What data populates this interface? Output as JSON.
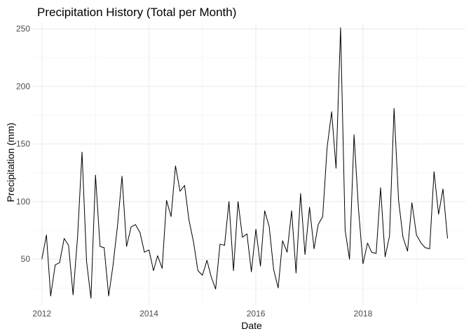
{
  "chart_data": {
    "type": "line",
    "title": "Precipitation History (Total per Month)",
    "xlabel": "Date",
    "ylabel": "Precipitation (mm)",
    "x_scale": "date",
    "xlim": [
      "2011-11-01",
      "2019-12-01"
    ],
    "ylim": [
      10,
      255
    ],
    "x_ticks": [
      {
        "value": "2012-01-01",
        "label": "2012"
      },
      {
        "value": "2014-01-01",
        "label": "2014"
      },
      {
        "value": "2016-01-01",
        "label": "2016"
      },
      {
        "value": "2018-01-01",
        "label": "2018"
      }
    ],
    "y_ticks": [
      50,
      100,
      150,
      200,
      250
    ],
    "grid": true,
    "legend": "none",
    "line_color": "#000000",
    "series": [
      {
        "x": [
          "2012-01-01",
          "2012-02-01",
          "2012-03-01",
          "2012-04-01",
          "2012-05-01",
          "2012-06-01",
          "2012-07-01",
          "2012-08-01",
          "2012-09-01",
          "2012-10-01",
          "2012-11-01",
          "2012-12-01",
          "2013-01-01",
          "2013-02-01",
          "2013-03-01",
          "2013-04-01",
          "2013-05-01",
          "2013-06-01",
          "2013-07-01",
          "2013-08-01",
          "2013-09-01",
          "2013-10-01",
          "2013-11-01",
          "2013-12-01",
          "2014-01-01",
          "2014-02-01",
          "2014-03-01",
          "2014-04-01",
          "2014-05-01",
          "2014-06-01",
          "2014-07-01",
          "2014-08-01",
          "2014-09-01",
          "2014-10-01",
          "2014-11-01",
          "2014-12-01",
          "2015-01-01",
          "2015-02-01",
          "2015-03-01",
          "2015-04-01",
          "2015-05-01",
          "2015-06-01",
          "2015-07-01",
          "2015-08-01",
          "2015-09-01",
          "2015-10-01",
          "2015-11-01",
          "2015-12-01",
          "2016-01-01",
          "2016-02-01",
          "2016-03-01",
          "2016-04-01",
          "2016-05-01",
          "2016-06-01",
          "2016-07-01",
          "2016-08-01",
          "2016-09-01",
          "2016-10-01",
          "2016-11-01",
          "2016-12-01",
          "2017-01-01",
          "2017-02-01",
          "2017-03-01",
          "2017-04-01",
          "2017-05-01",
          "2017-06-01",
          "2017-07-01",
          "2017-08-01",
          "2017-09-01",
          "2017-10-01",
          "2017-11-01",
          "2017-12-01",
          "2018-01-01",
          "2018-02-01",
          "2018-03-01",
          "2018-04-01",
          "2018-05-01",
          "2018-06-01",
          "2018-07-01",
          "2018-08-01",
          "2018-09-01",
          "2018-10-01",
          "2018-11-01",
          "2018-12-01",
          "2019-01-01",
          "2019-02-01",
          "2019-03-01",
          "2019-04-01",
          "2019-05-01",
          "2019-06-01",
          "2019-07-01",
          "2019-08-01"
        ],
        "values": [
          50,
          71,
          18,
          45,
          47,
          68,
          62,
          19,
          70,
          143,
          48,
          16,
          123,
          61,
          60,
          18,
          45,
          80,
          122,
          61,
          78,
          80,
          73,
          56,
          58,
          40,
          53,
          42,
          101,
          87,
          131,
          109,
          114,
          84,
          65,
          40,
          36,
          49,
          35,
          24,
          63,
          62,
          100,
          40,
          100,
          69,
          72,
          39,
          76,
          44,
          92,
          78,
          41,
          25,
          66,
          56,
          92,
          38,
          107,
          54,
          95,
          59,
          80,
          87,
          147,
          178,
          129,
          251,
          75,
          50,
          158,
          94,
          46,
          64,
          56,
          55,
          112,
          52,
          70,
          181,
          101,
          69,
          57,
          99,
          71,
          64,
          60,
          59,
          126,
          89,
          111,
          68
        ]
      }
    ]
  }
}
